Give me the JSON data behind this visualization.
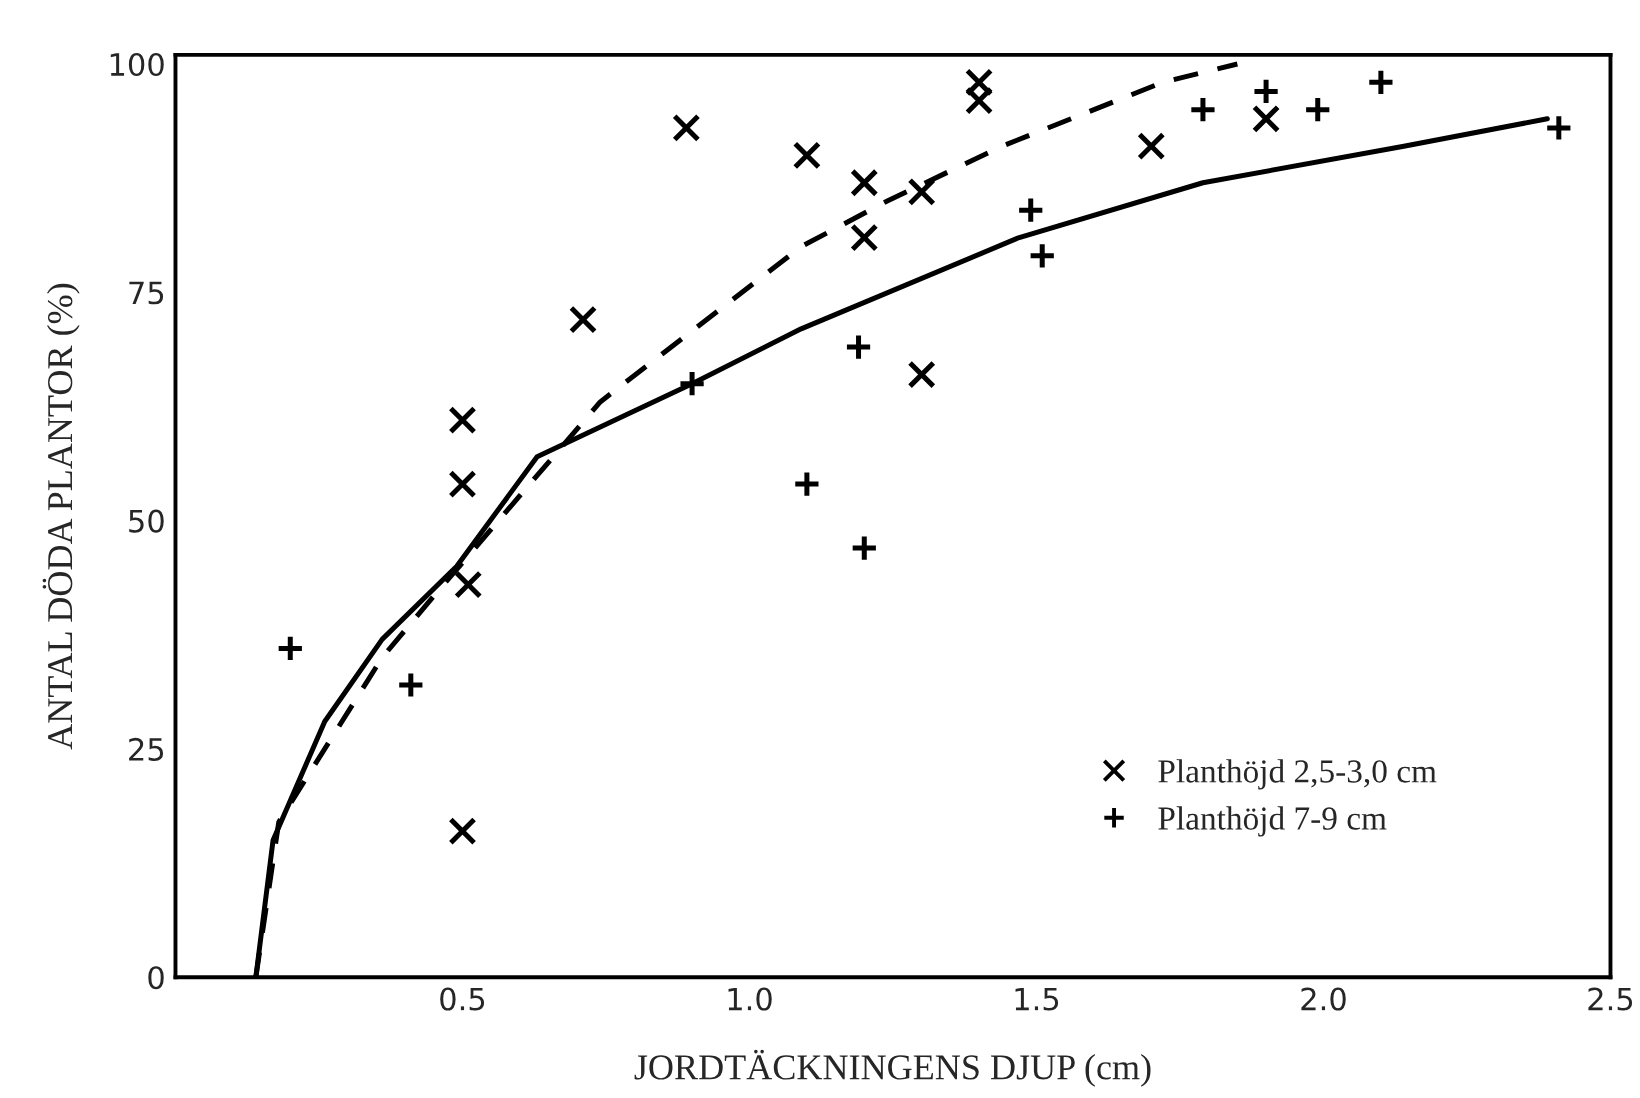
{
  "chart_data": {
    "type": "scatter",
    "xlabel": "JORDTÄCKNINGENS DJUP (cm)",
    "ylabel": "ANTAL DÖDA PLANTOR (%)",
    "xlim": [
      0,
      2.5
    ],
    "ylim": [
      0,
      101
    ],
    "xticks": [
      {
        "value": 0.5,
        "label": "0.5"
      },
      {
        "value": 1.0,
        "label": "1.0"
      },
      {
        "value": 1.5,
        "label": "1.5"
      },
      {
        "value": 2.0,
        "label": "2.0"
      },
      {
        "value": 2.5,
        "label": "2.5"
      }
    ],
    "yticks": [
      0,
      25,
      50,
      75,
      100
    ],
    "grid": false,
    "legend": "bottom right",
    "series": [
      {
        "name": "Planthöjd 2,5-3,0 cm",
        "marker": "cross",
        "color": "#000000",
        "x": [
          0.5,
          0.51,
          0.5,
          0.5,
          0.71,
          0.89,
          1.1,
          1.2,
          1.2,
          1.3,
          1.3,
          1.4,
          1.4,
          1.7,
          1.9
        ],
        "values": [
          16,
          43,
          54,
          61,
          72,
          93,
          90,
          87,
          81,
          86,
          66,
          96,
          98,
          91,
          94
        ]
      },
      {
        "name": "Planthöjd 7-9 cm",
        "marker": "plus",
        "color": "#000000",
        "x": [
          0.2,
          0.41,
          0.9,
          1.1,
          1.19,
          1.2,
          1.49,
          1.51,
          1.79,
          1.9,
          1.99,
          2.1,
          2.41
        ],
        "values": [
          36,
          32,
          65,
          54,
          69,
          47,
          84,
          79,
          95,
          97,
          95,
          98,
          93
        ]
      },
      {
        "type": "line",
        "line_style": "dashed",
        "marker": "none",
        "color": "#000000",
        "x": [
          0.14,
          0.18,
          0.36,
          0.44,
          0.74,
          1.09,
          1.24,
          1.44,
          1.72,
          1.85
        ],
        "values": [
          0,
          17,
          35,
          41,
          63,
          80,
          85,
          91,
          98,
          100
        ]
      },
      {
        "type": "line",
        "line_style": "solid",
        "marker": "none",
        "color": "#000000",
        "x": [
          0.14,
          0.17,
          0.26,
          0.36,
          0.49,
          0.63,
          0.9,
          1.09,
          1.47,
          1.79,
          2.14,
          2.39
        ],
        "values": [
          0,
          15,
          28,
          37,
          45,
          57,
          65,
          71,
          81,
          87,
          91,
          94
        ]
      }
    ]
  }
}
